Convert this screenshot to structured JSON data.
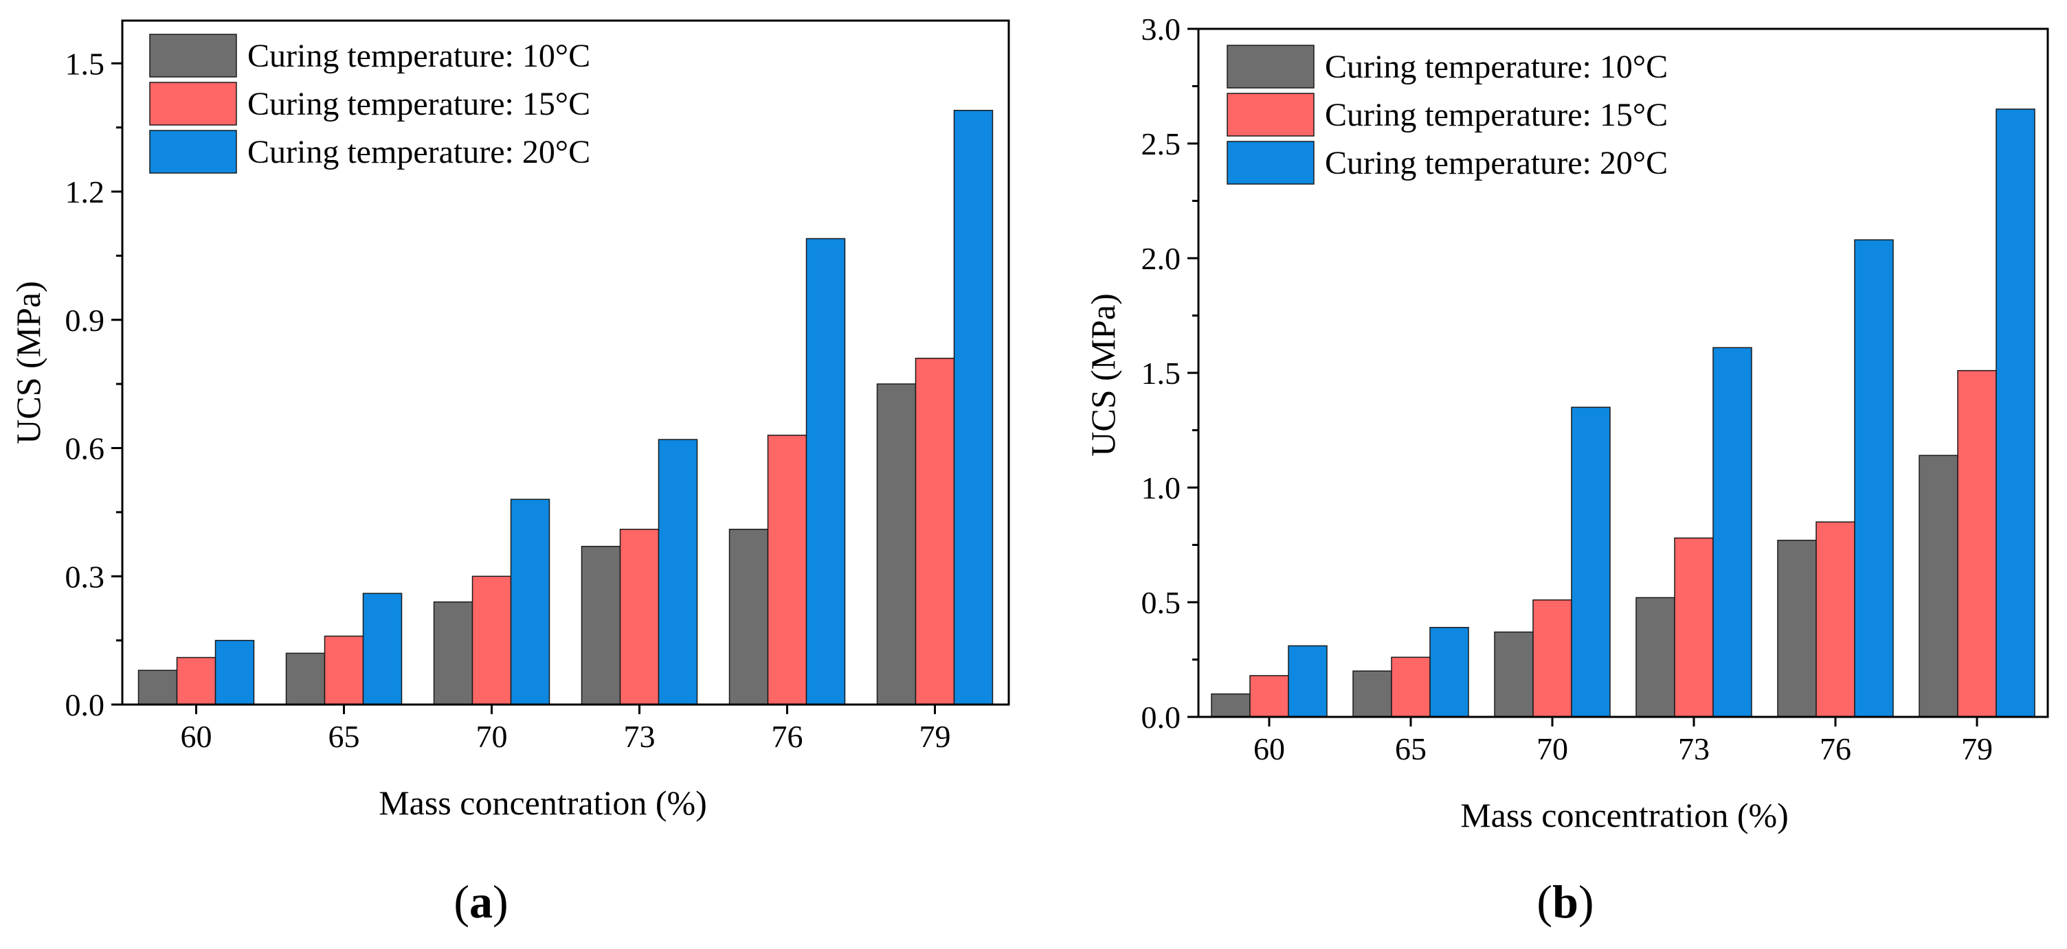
{
  "colors": {
    "series_10": "#6e6e6e",
    "series_15": "#ff6666",
    "series_20": "#0e88e0",
    "axis": "#000000"
  },
  "chart_data": [
    {
      "type": "bar",
      "panel_label": "a",
      "xlabel": "Mass concentration (%)",
      "ylabel": "UCS (MPa)",
      "categories": [
        "60",
        "65",
        "70",
        "73",
        "76",
        "79"
      ],
      "ylim": [
        0,
        1.6
      ],
      "yticks": [
        "0.0",
        "0.3",
        "0.6",
        "0.9",
        "1.2",
        "1.5"
      ],
      "legend_position": "top-left",
      "series": [
        {
          "name": "Curing temperature: 10°C",
          "values": [
            0.08,
            0.12,
            0.24,
            0.37,
            0.41,
            0.75
          ]
        },
        {
          "name": "Curing temperature: 15°C",
          "values": [
            0.11,
            0.16,
            0.3,
            0.41,
            0.63,
            0.81
          ]
        },
        {
          "name": "Curing temperature: 20°C",
          "values": [
            0.15,
            0.26,
            0.48,
            0.62,
            1.09,
            1.39
          ]
        }
      ]
    },
    {
      "type": "bar",
      "panel_label": "b",
      "xlabel": "Mass concentration (%)",
      "ylabel": "UCS (MPa)",
      "categories": [
        "60",
        "65",
        "70",
        "73",
        "76",
        "79"
      ],
      "ylim": [
        0,
        3.0
      ],
      "yticks": [
        "0.0",
        "0.5",
        "1.0",
        "1.5",
        "2.0",
        "2.5",
        "3.0"
      ],
      "legend_position": "top-left",
      "series": [
        {
          "name": "Curing temperature: 10°C",
          "values": [
            0.1,
            0.2,
            0.37,
            0.52,
            0.77,
            1.14
          ]
        },
        {
          "name": "Curing temperature: 15°C",
          "values": [
            0.18,
            0.26,
            0.51,
            0.78,
            0.85,
            1.51
          ]
        },
        {
          "name": "Curing temperature: 20°C",
          "values": [
            0.31,
            0.39,
            1.35,
            1.61,
            2.08,
            2.65
          ]
        }
      ]
    }
  ]
}
